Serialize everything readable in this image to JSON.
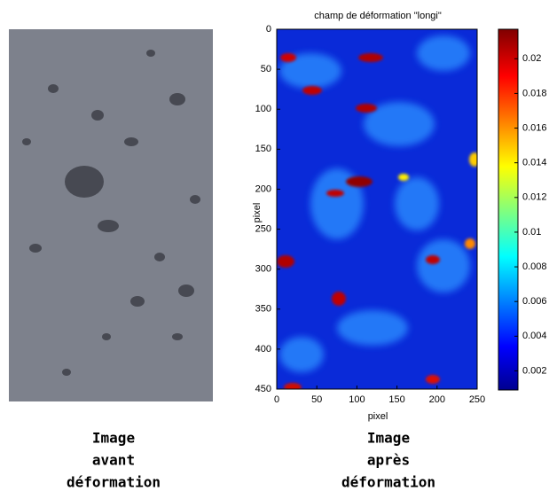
{
  "chart_data": {
    "type": "heatmap",
    "title": "champ de déformation \"longi\"",
    "x_label": "pixel",
    "y_label": "pixel",
    "xlim": [
      0,
      250
    ],
    "xticks": [
      0,
      50,
      100,
      150,
      200,
      250
    ],
    "ylim": [
      450,
      0
    ],
    "yticks": [
      0,
      50,
      100,
      150,
      200,
      250,
      300,
      350,
      400,
      450
    ],
    "colorbar": {
      "lim": [
        0.0009,
        0.0217
      ],
      "ticks": [
        0.002,
        0.004,
        0.006,
        0.008,
        0.01,
        0.012,
        0.014,
        0.016,
        0.018,
        0.02
      ]
    }
  },
  "captions": {
    "left": [
      "Image",
      "avant",
      "déformation"
    ],
    "right": [
      "Image",
      "après",
      "déformation"
    ]
  }
}
